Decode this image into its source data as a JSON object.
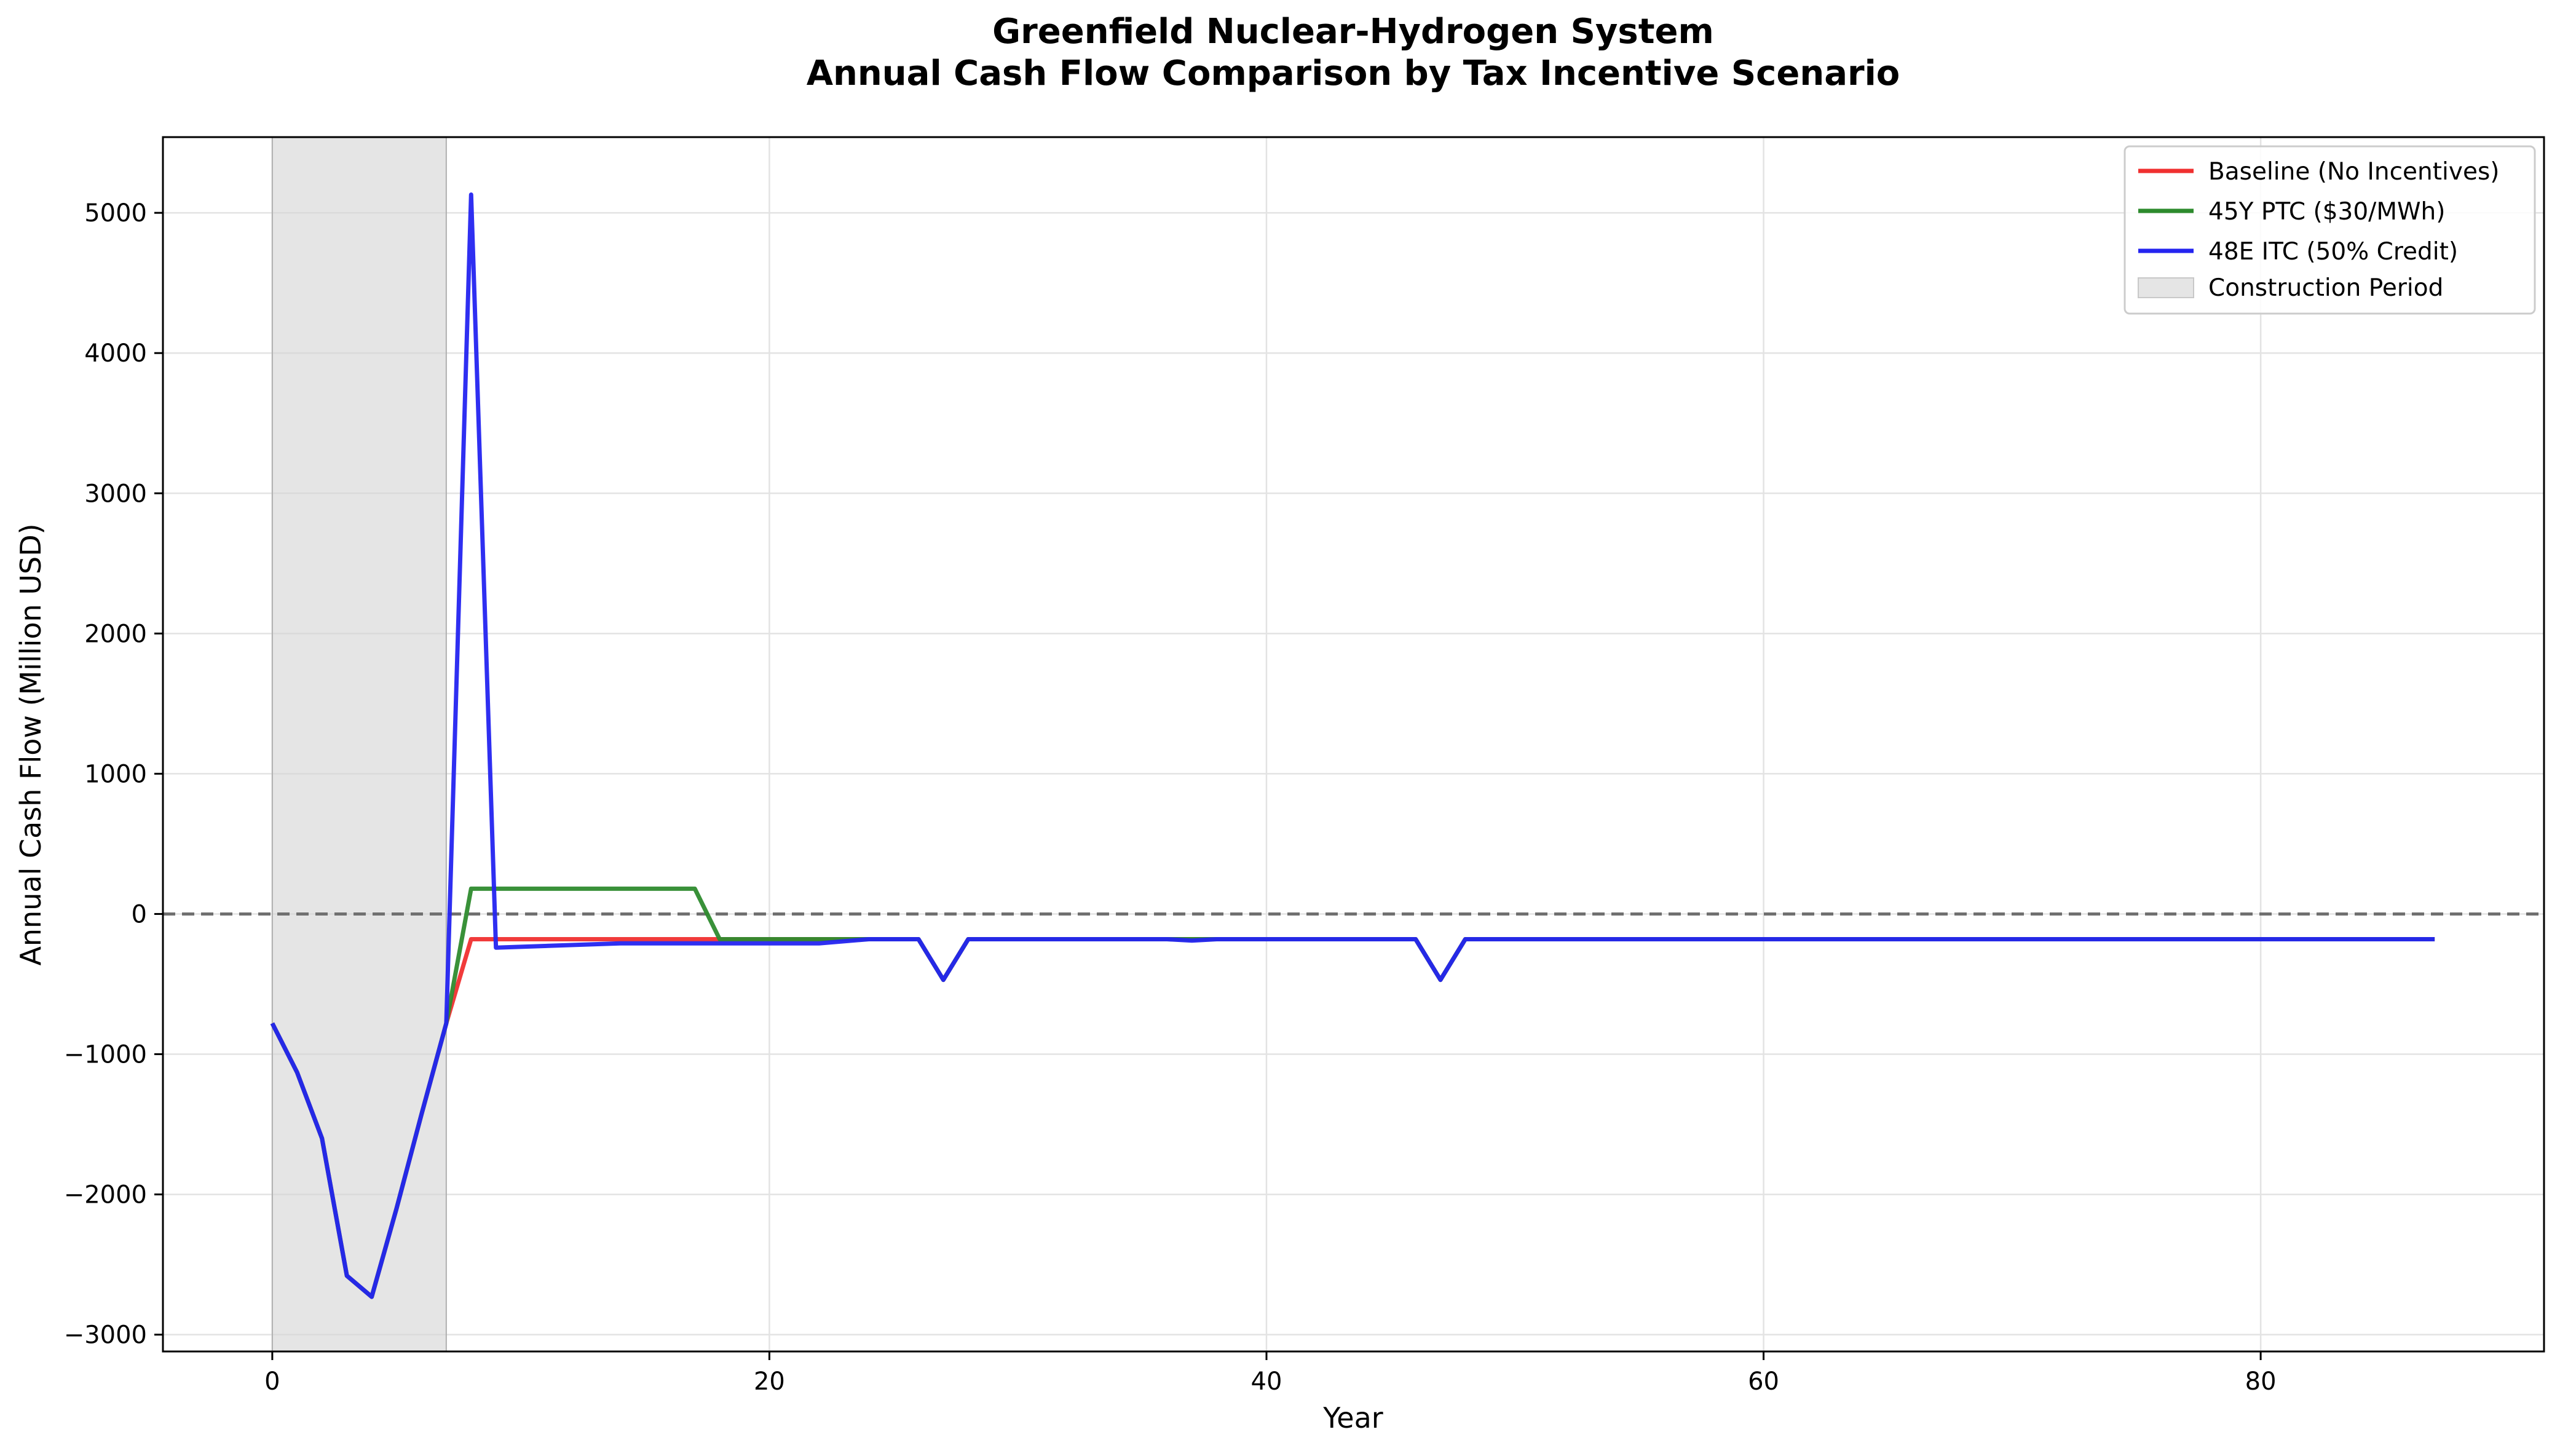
{
  "chart_data": {
    "type": "line",
    "title_line1": "Greenfield Nuclear-Hydrogen System",
    "title_line2": "Annual Cash Flow Comparison by Tax Incentive Scenario",
    "xlabel": "Year",
    "ylabel": "Annual Cash Flow (Million USD)",
    "xlim": [
      -4.4,
      91.4
    ],
    "ylim": [
      -3120,
      5540
    ],
    "xticks": [
      0,
      20,
      40,
      60,
      80
    ],
    "yticks": [
      -3000,
      -2000,
      -1000,
      0,
      1000,
      2000,
      3000,
      4000,
      5000
    ],
    "ytick_labels": [
      "−3000",
      "−2000",
      "−1000",
      "0",
      "1000",
      "2000",
      "3000",
      "4000",
      "5000"
    ],
    "grid": true,
    "legend_position": "top-right",
    "reference_line": {
      "y": 0,
      "style": "dashed",
      "color": "#707070"
    },
    "shaded_region": {
      "x_start": 0,
      "x_end": 7,
      "label": "Construction Period",
      "color": "#d3d3d3"
    },
    "series": [
      {
        "name": "Baseline (No Incentives)",
        "color": "#f03030",
        "points": [
          [
            0,
            -780
          ],
          [
            1,
            -1130
          ],
          [
            2,
            -1600
          ],
          [
            3,
            -2580
          ],
          [
            4,
            -2730
          ],
          [
            5,
            -2100
          ],
          [
            6,
            -1430
          ],
          [
            7,
            -780
          ],
          [
            8,
            -180
          ],
          [
            9,
            -180
          ],
          [
            17,
            -180
          ],
          [
            18,
            -180
          ],
          [
            22,
            -180
          ],
          [
            24,
            -180
          ],
          [
            26,
            -180
          ],
          [
            27,
            -470
          ],
          [
            28,
            -180
          ],
          [
            36,
            -180
          ],
          [
            37,
            -180
          ],
          [
            46,
            -180
          ],
          [
            47,
            -470
          ],
          [
            48,
            -180
          ],
          [
            87,
            -180
          ]
        ]
      },
      {
        "name": "45Y PTC ($30/MWh)",
        "color": "#2e8b2e",
        "points": [
          [
            0,
            -780
          ],
          [
            1,
            -1130
          ],
          [
            2,
            -1600
          ],
          [
            3,
            -2580
          ],
          [
            4,
            -2730
          ],
          [
            5,
            -2100
          ],
          [
            6,
            -1430
          ],
          [
            7,
            -780
          ],
          [
            8,
            180
          ],
          [
            9,
            180
          ],
          [
            17,
            180
          ],
          [
            18,
            -180
          ],
          [
            22,
            -180
          ],
          [
            24,
            -180
          ],
          [
            26,
            -180
          ],
          [
            27,
            -470
          ],
          [
            28,
            -180
          ],
          [
            36,
            -180
          ],
          [
            37,
            -180
          ],
          [
            46,
            -180
          ],
          [
            47,
            -470
          ],
          [
            48,
            -180
          ],
          [
            87,
            -180
          ]
        ]
      },
      {
        "name": "48E ITC (50% Credit)",
        "color": "#2424f0",
        "points": [
          [
            0,
            -780
          ],
          [
            1,
            -1130
          ],
          [
            2,
            -1600
          ],
          [
            3,
            -2580
          ],
          [
            4,
            -2730
          ],
          [
            5,
            -2100
          ],
          [
            6,
            -1430
          ],
          [
            7,
            -780
          ],
          [
            8,
            5130
          ],
          [
            9,
            -240
          ],
          [
            14,
            -210
          ],
          [
            22,
            -210
          ],
          [
            24,
            -180
          ],
          [
            26,
            -180
          ],
          [
            27,
            -470
          ],
          [
            28,
            -180
          ],
          [
            36,
            -180
          ],
          [
            37,
            -190
          ],
          [
            38,
            -180
          ],
          [
            46,
            -180
          ],
          [
            47,
            -470
          ],
          [
            48,
            -180
          ],
          [
            87,
            -180
          ]
        ]
      }
    ]
  }
}
